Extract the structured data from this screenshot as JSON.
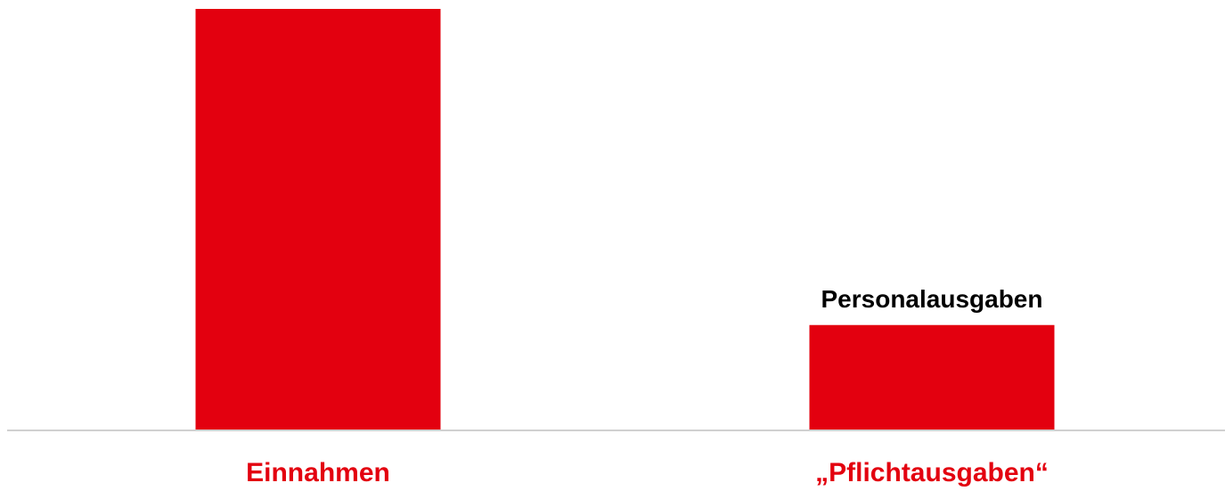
{
  "chart_data": {
    "type": "bar",
    "categories": [
      "Einnahmen",
      "„Pflichtausgaben“"
    ],
    "values": [
      100,
      25
    ],
    "data_labels": [
      "",
      "Personalausgaben"
    ],
    "ylim": [
      0,
      100
    ],
    "grid": false,
    "legend": "none",
    "colors": {
      "bar": "#e3000f",
      "category_label": "#e3000f",
      "data_label": "#000000",
      "baseline": "#d0d0d0"
    }
  }
}
